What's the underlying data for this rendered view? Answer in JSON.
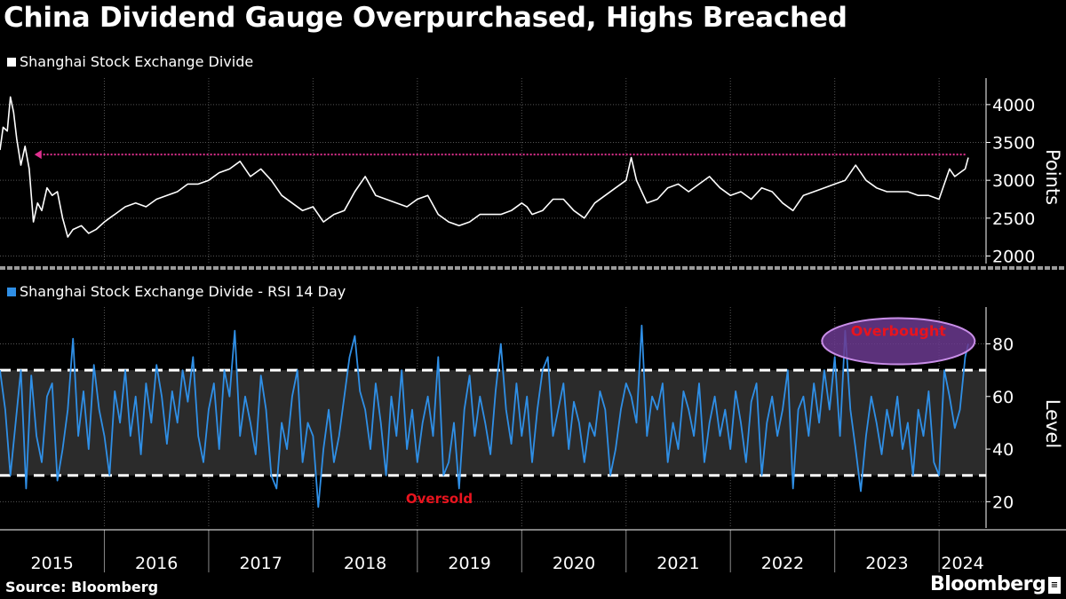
{
  "title": "China Dividend Gauge Overpurchased, Highs Breached",
  "source": "Source: Bloomberg",
  "brand": "Bloomberg",
  "brand_mark": "≡",
  "colors": {
    "background": "#000000",
    "price_line": "#ffffff",
    "rsi_line": "#2f8fe6",
    "high_line": "#e0308f",
    "rsi_band": "#2b2b2b",
    "annotation_text": "#e8141e",
    "overbought_fill": "#6b3a8f",
    "overbought_stroke": "#c98ee8",
    "grid": "#555555"
  },
  "chart_data": [
    {
      "type": "line",
      "legend": "Shanghai Stock Exchange Divide",
      "ylabel": "Points",
      "ylim": [
        1900,
        4350
      ],
      "yticks": [
        2000,
        2500,
        3000,
        3500,
        4000
      ],
      "x_tick_labels": [
        "2015",
        "2016",
        "2017",
        "2018",
        "2019",
        "2020",
        "2021",
        "2022",
        "2023",
        "2024"
      ],
      "xlim": [
        2015.0,
        2024.45
      ],
      "reference_high": 3340,
      "series": [
        {
          "x": [
            2015.0,
            2015.03,
            2015.07,
            2015.1,
            2015.13,
            2015.16,
            2015.2,
            2015.24,
            2015.28,
            2015.32,
            2015.36,
            2015.4,
            2015.45,
            2015.5,
            2015.55,
            2015.6,
            2015.65,
            2015.7,
            2015.78,
            2015.85,
            2015.92,
            2016.0,
            2016.05,
            2016.1,
            2016.2,
            2016.3,
            2016.4,
            2016.5,
            2016.6,
            2016.7,
            2016.8,
            2016.9,
            2017.0,
            2017.1,
            2017.2,
            2017.3,
            2017.4,
            2017.5,
            2017.6,
            2017.7,
            2017.8,
            2017.9,
            2018.0,
            2018.05,
            2018.1,
            2018.2,
            2018.3,
            2018.4,
            2018.5,
            2018.6,
            2018.7,
            2018.8,
            2018.9,
            2019.0,
            2019.1,
            2019.2,
            2019.3,
            2019.4,
            2019.5,
            2019.6,
            2019.7,
            2019.8,
            2019.9,
            2020.0,
            2020.05,
            2020.1,
            2020.2,
            2020.3,
            2020.4,
            2020.5,
            2020.6,
            2020.7,
            2020.8,
            2020.9,
            2021.0,
            2021.05,
            2021.1,
            2021.15,
            2021.2,
            2021.3,
            2021.4,
            2021.5,
            2021.6,
            2021.7,
            2021.8,
            2021.9,
            2022.0,
            2022.1,
            2022.2,
            2022.3,
            2022.4,
            2022.5,
            2022.6,
            2022.7,
            2022.8,
            2022.9,
            2023.0,
            2023.1,
            2023.2,
            2023.3,
            2023.4,
            2023.5,
            2023.6,
            2023.7,
            2023.8,
            2023.9,
            2024.0,
            2024.05,
            2024.1,
            2024.15,
            2024.2,
            2024.25,
            2024.28
          ],
          "y": [
            3400,
            3700,
            3650,
            4100,
            3900,
            3550,
            3200,
            3450,
            3150,
            2450,
            2700,
            2600,
            2900,
            2800,
            2850,
            2500,
            2250,
            2350,
            2400,
            2300,
            2350,
            2450,
            2500,
            2550,
            2650,
            2700,
            2650,
            2750,
            2800,
            2850,
            2950,
            2950,
            3000,
            3100,
            3150,
            3250,
            3050,
            3150,
            3000,
            2800,
            2700,
            2600,
            2650,
            2550,
            2450,
            2550,
            2600,
            2850,
            3050,
            2800,
            2750,
            2700,
            2650,
            2750,
            2800,
            2550,
            2450,
            2400,
            2450,
            2550,
            2550,
            2550,
            2600,
            2700,
            2650,
            2550,
            2600,
            2750,
            2750,
            2600,
            2500,
            2700,
            2800,
            2900,
            3000,
            3300,
            3000,
            2850,
            2700,
            2750,
            2900,
            2950,
            2850,
            2950,
            3050,
            2900,
            2800,
            2850,
            2750,
            2900,
            2850,
            2700,
            2600,
            2800,
            2850,
            2900,
            2950,
            3000,
            3200,
            3000,
            2900,
            2850,
            2850,
            2850,
            2800,
            2800,
            2750,
            2950,
            3150,
            3050,
            3100,
            3150,
            3300
          ]
        }
      ]
    },
    {
      "type": "line",
      "legend": "Shanghai Stock Exchange Divide - RSI 14 Day",
      "ylabel": "Level",
      "ylim": [
        10,
        94
      ],
      "yticks": [
        20,
        40,
        60,
        80
      ],
      "xlim": [
        2015.0,
        2024.45
      ],
      "band": [
        30,
        70
      ],
      "annotations": [
        "Overbought",
        "Oversold"
      ],
      "series": [
        {
          "x": [
            2015.0,
            2015.05,
            2015.1,
            2015.15,
            2015.2,
            2015.25,
            2015.3,
            2015.35,
            2015.4,
            2015.45,
            2015.5,
            2015.55,
            2015.6,
            2015.65,
            2015.7,
            2015.75,
            2015.8,
            2015.85,
            2015.9,
            2015.95,
            2016.0,
            2016.05,
            2016.1,
            2016.15,
            2016.2,
            2016.25,
            2016.3,
            2016.35,
            2016.4,
            2016.45,
            2016.5,
            2016.55,
            2016.6,
            2016.65,
            2016.7,
            2016.75,
            2016.8,
            2016.85,
            2016.9,
            2016.95,
            2017.0,
            2017.05,
            2017.1,
            2017.15,
            2017.2,
            2017.25,
            2017.3,
            2017.35,
            2017.4,
            2017.45,
            2017.5,
            2017.55,
            2017.6,
            2017.65,
            2017.7,
            2017.75,
            2017.8,
            2017.85,
            2017.9,
            2017.95,
            2018.0,
            2018.05,
            2018.1,
            2018.15,
            2018.2,
            2018.25,
            2018.3,
            2018.35,
            2018.4,
            2018.45,
            2018.5,
            2018.55,
            2018.6,
            2018.65,
            2018.7,
            2018.75,
            2018.8,
            2018.85,
            2018.9,
            2018.95,
            2019.0,
            2019.05,
            2019.1,
            2019.15,
            2019.2,
            2019.25,
            2019.3,
            2019.35,
            2019.4,
            2019.45,
            2019.5,
            2019.55,
            2019.6,
            2019.65,
            2019.7,
            2019.75,
            2019.8,
            2019.85,
            2019.9,
            2019.95,
            2020.0,
            2020.05,
            2020.1,
            2020.15,
            2020.2,
            2020.25,
            2020.3,
            2020.35,
            2020.4,
            2020.45,
            2020.5,
            2020.55,
            2020.6,
            2020.65,
            2020.7,
            2020.75,
            2020.8,
            2020.85,
            2020.9,
            2020.95,
            2021.0,
            2021.05,
            2021.1,
            2021.15,
            2021.2,
            2021.25,
            2021.3,
            2021.35,
            2021.4,
            2021.45,
            2021.5,
            2021.55,
            2021.6,
            2021.65,
            2021.7,
            2021.75,
            2021.8,
            2021.85,
            2021.9,
            2021.95,
            2022.0,
            2022.05,
            2022.1,
            2022.15,
            2022.2,
            2022.25,
            2022.3,
            2022.35,
            2022.4,
            2022.45,
            2022.5,
            2022.55,
            2022.6,
            2022.65,
            2022.7,
            2022.75,
            2022.8,
            2022.85,
            2022.9,
            2022.95,
            2023.0,
            2023.05,
            2023.1,
            2023.15,
            2023.2,
            2023.25,
            2023.3,
            2023.35,
            2023.4,
            2023.45,
            2023.5,
            2023.55,
            2023.6,
            2023.65,
            2023.7,
            2023.75,
            2023.8,
            2023.85,
            2023.9,
            2023.95,
            2024.0,
            2024.05,
            2024.1,
            2024.15,
            2024.2,
            2024.25,
            2024.28
          ],
          "y": [
            70,
            55,
            30,
            50,
            70,
            25,
            68,
            45,
            35,
            60,
            65,
            28,
            40,
            55,
            82,
            45,
            62,
            40,
            72,
            55,
            45,
            30,
            62,
            50,
            70,
            45,
            60,
            38,
            65,
            50,
            72,
            60,
            42,
            62,
            50,
            70,
            58,
            75,
            45,
            35,
            55,
            65,
            40,
            70,
            60,
            85,
            45,
            60,
            50,
            38,
            68,
            55,
            30,
            25,
            50,
            40,
            60,
            70,
            35,
            50,
            45,
            18,
            40,
            55,
            35,
            45,
            60,
            75,
            83,
            62,
            55,
            40,
            65,
            50,
            30,
            60,
            45,
            70,
            40,
            55,
            35,
            50,
            60,
            45,
            75,
            30,
            35,
            50,
            25,
            55,
            68,
            45,
            60,
            50,
            38,
            62,
            80,
            55,
            42,
            65,
            45,
            60,
            35,
            55,
            70,
            75,
            45,
            55,
            65,
            40,
            58,
            50,
            35,
            50,
            45,
            62,
            55,
            30,
            40,
            55,
            65,
            60,
            50,
            87,
            45,
            60,
            55,
            65,
            35,
            50,
            40,
            62,
            55,
            45,
            65,
            35,
            50,
            60,
            45,
            55,
            40,
            62,
            50,
            35,
            58,
            65,
            30,
            50,
            60,
            45,
            55,
            70,
            25,
            55,
            60,
            45,
            65,
            50,
            70,
            55,
            75,
            45,
            85,
            55,
            40,
            24,
            45,
            60,
            50,
            38,
            55,
            45,
            60,
            40,
            50,
            30,
            55,
            45,
            62,
            35,
            30,
            70,
            60,
            48,
            55,
            75,
            80
          ]
        }
      ]
    }
  ]
}
